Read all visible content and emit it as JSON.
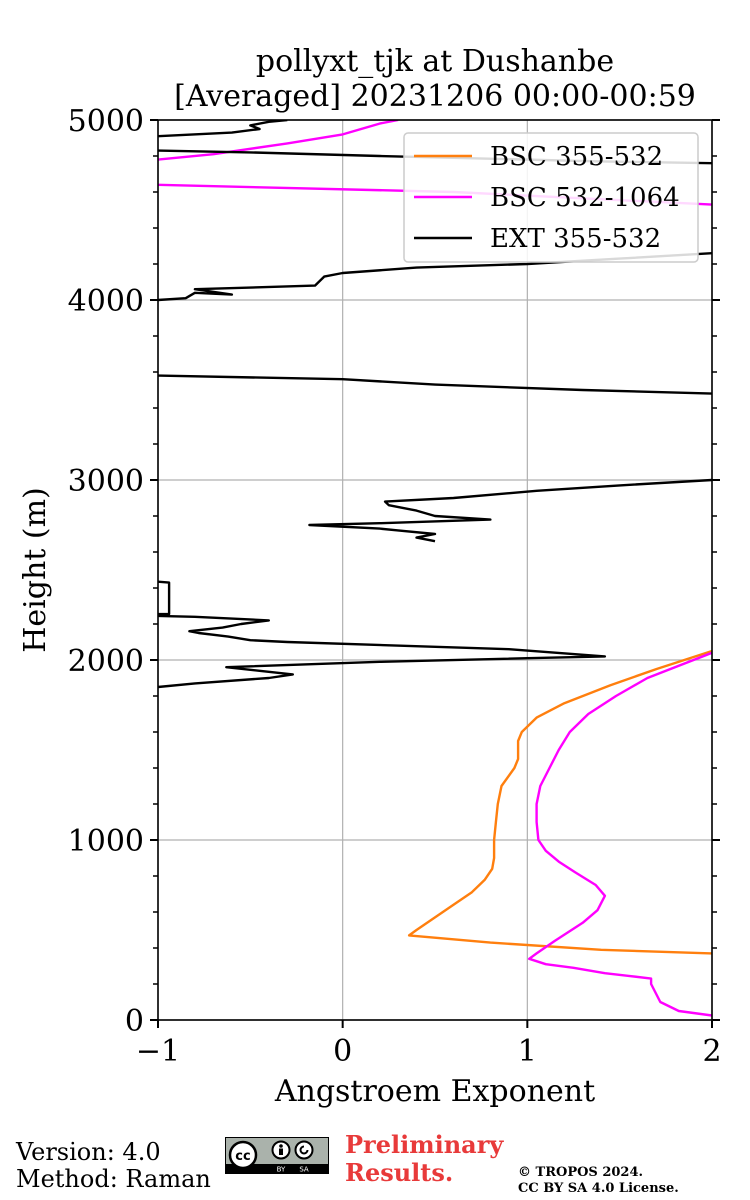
{
  "chart_data": {
    "type": "line",
    "title": "pollyxt_tjk at Dushanbe",
    "subtitle": "[Averaged] 20231206 00:00-00:59",
    "xlabel": "Angstroem Exponent",
    "ylabel": "Height (m)",
    "xlim": [
      -1,
      2
    ],
    "ylim": [
      0,
      5000
    ],
    "x_ticks": [
      -1,
      0,
      1,
      2
    ],
    "x_tick_labels": [
      "−1",
      "0",
      "1",
      "2"
    ],
    "y_ticks": [
      0,
      1000,
      2000,
      3000,
      4000,
      5000
    ],
    "y_tick_labels": [
      "0",
      "1000",
      "2000",
      "3000",
      "4000",
      "5000"
    ],
    "grid": true,
    "legend_position": "top-right",
    "series": [
      {
        "name": "BSC 355-532",
        "color": "#ff7f0e",
        "points": [
          [
            2.0,
            370
          ],
          [
            1.4,
            390
          ],
          [
            0.8,
            430
          ],
          [
            0.36,
            470
          ],
          [
            0.4,
            500
          ],
          [
            0.5,
            570
          ],
          [
            0.6,
            640
          ],
          [
            0.7,
            710
          ],
          [
            0.77,
            780
          ],
          [
            0.81,
            840
          ],
          [
            0.82,
            900
          ],
          [
            0.82,
            1000
          ],
          [
            0.83,
            1100
          ],
          [
            0.84,
            1200
          ],
          [
            0.86,
            1300
          ],
          [
            0.93,
            1400
          ],
          [
            0.95,
            1450
          ],
          [
            0.95,
            1550
          ],
          [
            0.97,
            1600
          ],
          [
            1.05,
            1680
          ],
          [
            1.2,
            1760
          ],
          [
            1.45,
            1860
          ],
          [
            1.7,
            1950
          ],
          [
            2.0,
            2050
          ]
        ]
      },
      {
        "name": "BSC 532-1064",
        "color": "#ff00ff",
        "points": [
          [
            2.0,
            25
          ],
          [
            1.82,
            50
          ],
          [
            1.72,
            100
          ],
          [
            1.67,
            200
          ],
          [
            1.67,
            230
          ],
          [
            1.55,
            245
          ],
          [
            1.42,
            260
          ],
          [
            1.25,
            290
          ],
          [
            1.1,
            310
          ],
          [
            1.01,
            340
          ],
          [
            1.05,
            370
          ],
          [
            1.15,
            440
          ],
          [
            1.3,
            540
          ],
          [
            1.38,
            610
          ],
          [
            1.42,
            690
          ],
          [
            1.37,
            750
          ],
          [
            1.26,
            820
          ],
          [
            1.17,
            880
          ],
          [
            1.1,
            940
          ],
          [
            1.06,
            1000
          ],
          [
            1.05,
            1100
          ],
          [
            1.05,
            1200
          ],
          [
            1.07,
            1300
          ],
          [
            1.12,
            1400
          ],
          [
            1.17,
            1500
          ],
          [
            1.23,
            1600
          ],
          [
            1.33,
            1700
          ],
          [
            1.48,
            1800
          ],
          [
            1.65,
            1900
          ],
          [
            2.0,
            2040
          ]
        ],
        "upper_points": [
          [
            -1,
            4640
          ],
          [
            0.6,
            4600
          ],
          [
            2.0,
            4530
          ],
          null,
          [
            -1,
            4780
          ],
          [
            -0.7,
            4810
          ],
          [
            -0.3,
            4870
          ],
          [
            0.0,
            4920
          ],
          [
            0.2,
            4980
          ],
          [
            0.3,
            5000
          ]
        ]
      },
      {
        "name": "EXT 355-532",
        "color": "#000000",
        "segments": [
          [
            [
              -1,
              1850
            ],
            [
              -0.8,
              1870
            ],
            [
              -0.4,
              1900
            ],
            [
              -0.27,
              1920
            ],
            [
              -0.45,
              1940
            ],
            [
              -0.63,
              1960
            ],
            [
              0.2,
              1990
            ],
            [
              1.0,
              2010
            ],
            [
              1.42,
              2020
            ],
            [
              0.9,
              2060
            ],
            [
              -0.3,
              2100
            ],
            [
              -0.5,
              2110
            ],
            [
              -0.62,
              2130
            ],
            [
              -0.78,
              2150
            ],
            [
              -0.83,
              2160
            ],
            [
              -0.65,
              2180
            ],
            [
              -0.55,
              2200
            ],
            [
              -0.4,
              2220
            ],
            [
              -0.8,
              2240
            ],
            [
              -1,
              2245
            ]
          ],
          [
            [
              -1,
              2255
            ],
            [
              -0.94,
              2255
            ],
            [
              -0.94,
              2430
            ],
            [
              -1,
              2435
            ]
          ],
          [
            [
              0.5,
              2660
            ],
            [
              0.4,
              2680
            ],
            [
              0.5,
              2700
            ],
            [
              0.3,
              2720
            ],
            [
              0.2,
              2730
            ],
            [
              -0.18,
              2750
            ],
            [
              0.2,
              2760
            ],
            [
              0.8,
              2780
            ],
            [
              0.5,
              2800
            ],
            [
              0.4,
              2830
            ],
            [
              0.25,
              2860
            ],
            [
              0.23,
              2880
            ],
            [
              0.6,
              2900
            ],
            [
              1.05,
              2940
            ],
            [
              1.5,
              2970
            ],
            [
              2.0,
              3000
            ]
          ],
          [
            [
              2.0,
              3480
            ],
            [
              1.3,
              3500
            ],
            [
              0.5,
              3530
            ],
            [
              0.0,
              3560
            ],
            [
              -1,
              3580
            ]
          ],
          [
            [
              -1,
              4000
            ],
            [
              -0.85,
              4010
            ],
            [
              -0.8,
              4040
            ],
            [
              -0.6,
              4030
            ],
            [
              -0.8,
              4060
            ],
            [
              -0.15,
              4080
            ],
            [
              -0.1,
              4130
            ],
            [
              0.0,
              4150
            ],
            [
              0.4,
              4180
            ],
            [
              1.0,
              4200
            ],
            [
              1.5,
              4230
            ],
            [
              2.0,
              4260
            ]
          ],
          [
            [
              2.0,
              4760
            ],
            [
              1.4,
              4770
            ],
            [
              0.2,
              4800
            ],
            [
              -0.5,
              4820
            ],
            [
              -1,
              4830
            ]
          ],
          [
            [
              -1,
              4910
            ],
            [
              -0.6,
              4930
            ],
            [
              -0.45,
              4950
            ],
            [
              -0.5,
              4970
            ],
            [
              -0.4,
              4990
            ],
            [
              -0.3,
              5000
            ]
          ]
        ]
      }
    ]
  },
  "footer": {
    "version": "Version: 4.0",
    "method": "Method: Raman",
    "preliminary_line1": "Preliminary",
    "preliminary_line2": "Results.",
    "copyright_line1": "© TROPOS 2024.",
    "copyright_line2": "CC BY SA 4.0 License.",
    "license_badge": {
      "main": "cc",
      "by": "BY",
      "sa": "SA"
    }
  }
}
